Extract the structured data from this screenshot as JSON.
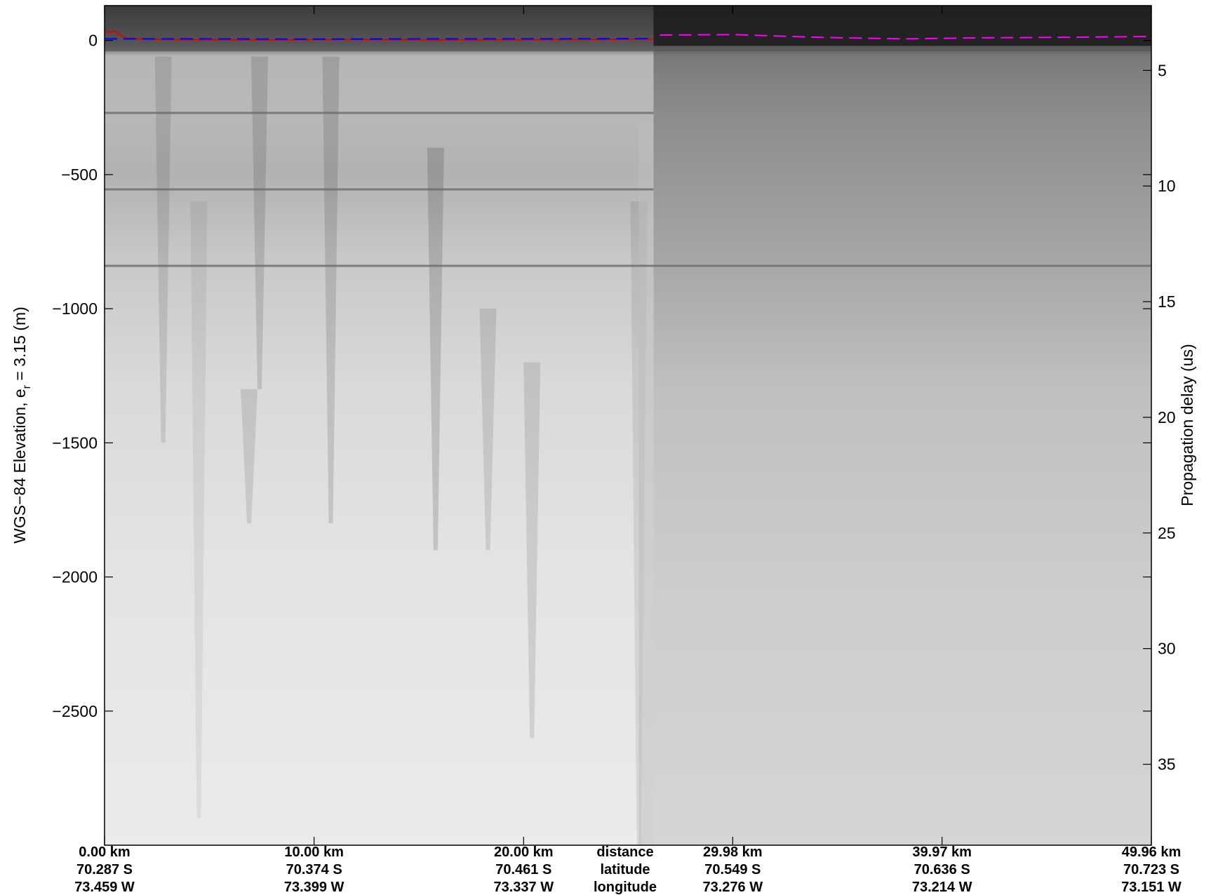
{
  "chart_data": {
    "type": "heatmap",
    "title": "",
    "ylabel_left_main": "WGS−84 Elevation, e",
    "ylabel_left_sub": "r",
    "ylabel_left_tail": " = 3.15 (m)",
    "ylabel_right": "Propagation delay (us)",
    "left_axis": {
      "ylim": [
        -3000,
        130
      ],
      "ticks": [
        0,
        -500,
        -1000,
        -1500,
        -2000,
        -2500
      ],
      "tick_labels": [
        "0",
        "−500",
        "−1000",
        "−1500",
        "−2000",
        "−2500"
      ]
    },
    "right_axis": {
      "ylim": [
        2.2,
        38.5
      ],
      "ticks": [
        5,
        10,
        15,
        20,
        25,
        30,
        35
      ],
      "tick_labels": [
        "5",
        "10",
        "15",
        "20",
        "25",
        "30",
        "35"
      ]
    },
    "x_axis": {
      "xlim": [
        0,
        49.96
      ],
      "ticks": [
        0.0,
        10.0,
        20.0,
        29.98,
        39.97,
        49.96
      ],
      "distance_labels": [
        "0.00 km",
        "10.00 km",
        "20.00 km",
        "29.98 km",
        "39.97 km",
        "49.96 km"
      ],
      "latitude_labels": [
        "70.287 S",
        "70.374 S",
        "70.461 S",
        "70.549 S",
        "70.636 S",
        "70.723 S"
      ],
      "longitude_labels": [
        "73.459 W",
        "73.399 W",
        "73.337 W",
        "73.276 W",
        "73.214 W",
        "73.151 W"
      ],
      "row_labels": [
        "distance",
        "latitude",
        "longitude"
      ]
    },
    "surface_picks": [
      {
        "color": "#e00000",
        "x": [
          0,
          0.5,
          1.0,
          2.0,
          4.0,
          8.0,
          12.0,
          16.0,
          20.0,
          24.0,
          26.2
        ],
        "y": [
          30,
          35,
          8,
          5,
          3,
          2,
          4,
          2,
          3,
          4,
          5
        ]
      },
      {
        "color": "#0000ff",
        "x": [
          0,
          5,
          10,
          15,
          20,
          26.2
        ],
        "y": [
          6,
          6,
          5,
          6,
          6,
          7
        ]
      },
      {
        "color": "#ff00ff",
        "x": [
          26.5,
          30,
          34,
          38,
          42,
          46,
          49.96
        ],
        "y": [
          20,
          22,
          12,
          6,
          10,
          12,
          15
        ]
      }
    ],
    "internal_layers": [
      {
        "name": "",
        "x": [
          0,
          26.2
        ],
        "y": [
          -270,
          -270
        ]
      },
      {
        "name": "",
        "x": [
          0,
          26.2
        ],
        "y": [
          -555,
          -555
        ]
      },
      {
        "name": "",
        "x": [
          0,
          49.96
        ],
        "y": [
          -840,
          -840
        ]
      }
    ],
    "colormap": "gray",
    "grid": false,
    "legend": "none"
  }
}
